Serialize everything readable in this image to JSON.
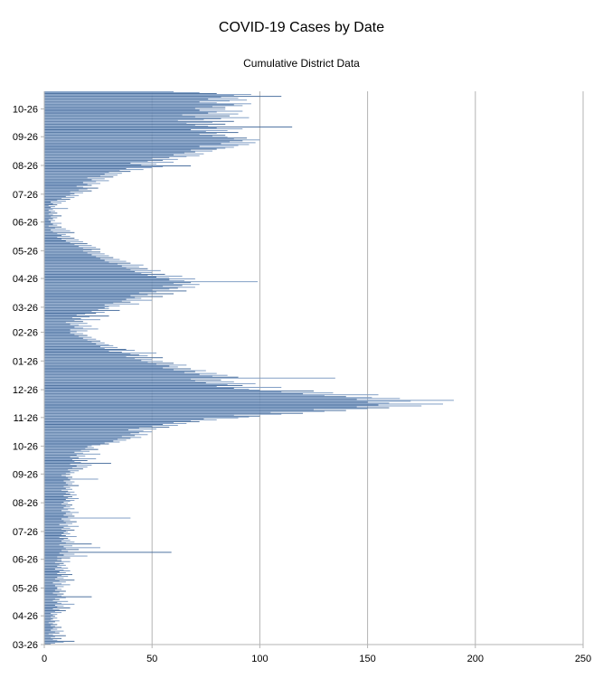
{
  "chart_data": {
    "type": "bar",
    "orientation": "horizontal",
    "title": "COVID-19 Cases by Date",
    "subtitle": "Cumulative District Data",
    "xlabel": "",
    "ylabel": "",
    "xlim": [
      0,
      250
    ],
    "x_ticks": [
      "0",
      "50",
      "100",
      "150",
      "200",
      "250"
    ],
    "y_tick_labels": [
      "03-26",
      "04-26",
      "05-26",
      "06-26",
      "07-26",
      "08-26",
      "09-26",
      "10-26",
      "11-26",
      "12-26",
      "01-26",
      "02-26",
      "03-26",
      "04-26",
      "05-26",
      "06-26",
      "07-26",
      "08-26",
      "09-26",
      "10-26"
    ],
    "grid": "vertical",
    "legend": "none",
    "bar_color": "#7f9dc4",
    "bar_color_dark": "#4a6f9e",
    "monthly_values": [
      {
        "label": "03-26",
        "values": [
          3,
          5,
          9,
          14,
          6,
          4,
          8,
          3,
          5,
          10,
          4,
          2,
          7,
          5,
          9,
          3,
          6,
          4,
          8,
          5,
          3,
          6,
          4,
          2,
          5,
          7,
          3,
          4,
          6,
          3,
          5
        ]
      },
      {
        "label": "04-26",
        "values": [
          4,
          6,
          3,
          8,
          5,
          10,
          7,
          4,
          12,
          6,
          9,
          5,
          14,
          8,
          6,
          11,
          4,
          7,
          5,
          10,
          22,
          8,
          6,
          9,
          4,
          7,
          10,
          5,
          8,
          6
        ]
      },
      {
        "label": "05-26",
        "values": [
          6,
          9,
          5,
          12,
          8,
          4,
          10,
          7,
          14,
          5,
          9,
          6,
          11,
          8,
          13,
          6,
          10,
          7,
          12,
          9,
          5,
          11,
          8,
          6,
          10,
          7,
          9,
          5,
          12,
          8,
          6
        ]
      },
      {
        "label": "06-26",
        "values": [
          8,
          12,
          6,
          20,
          9,
          14,
          7,
          59,
          11,
          8,
          16,
          10,
          26,
          9,
          13,
          7,
          22,
          10,
          14,
          8,
          12,
          9,
          11,
          7,
          15,
          10,
          8,
          12,
          9,
          11
        ]
      },
      {
        "label": "07-26",
        "values": [
          10,
          14,
          8,
          12,
          9,
          16,
          11,
          7,
          13,
          10,
          15,
          9,
          12,
          8,
          40,
          11,
          14,
          9,
          13,
          10,
          16,
          12,
          8,
          11,
          14,
          9,
          12,
          10,
          13,
          8,
          11
        ]
      },
      {
        "label": "08-26",
        "values": [
          9,
          12,
          14,
          10,
          16,
          11,
          13,
          9,
          15,
          12,
          10,
          14,
          11,
          8,
          13,
          10,
          12,
          9,
          16,
          11,
          13,
          10,
          14,
          9,
          12,
          25,
          11,
          13,
          10,
          8,
          12
        ]
      },
      {
        "label": "09-26",
        "values": [
          10,
          14,
          12,
          16,
          11,
          18,
          13,
          20,
          15,
          22,
          12,
          31,
          17,
          14,
          20,
          13,
          24,
          16,
          12,
          19,
          15,
          26,
          18,
          14,
          21,
          17,
          25,
          19,
          23,
          20
        ]
      },
      {
        "label": "10-26",
        "values": [
          22,
          26,
          30,
          28,
          35,
          32,
          38,
          34,
          40,
          45,
          36,
          42,
          48,
          40,
          44,
          50,
          46,
          39,
          52,
          44,
          58,
          50,
          62,
          55,
          66,
          60,
          72,
          68,
          80,
          74,
          90
        ]
      },
      {
        "label": "11-26",
        "values": [
          95,
          100,
          88,
          110,
          120,
          105,
          130,
          140,
          125,
          150,
          160,
          145,
          175,
          155,
          185,
          160,
          150,
          170,
          190,
          145,
          165,
          152,
          140,
          130,
          155,
          120,
          134,
          110,
          125,
          100
        ]
      },
      {
        "label": "12-26",
        "values": [
          95,
          88,
          110,
          80,
          92,
          85,
          98,
          75,
          88,
          70,
          82,
          68,
          135,
          90,
          78,
          85,
          72,
          80,
          65,
          70,
          75,
          60,
          68,
          55,
          62,
          58,
          66,
          52,
          60,
          48,
          55
        ]
      },
      {
        "label": "01-26",
        "values": [
          45,
          50,
          42,
          55,
          38,
          48,
          44,
          40,
          52,
          36,
          30,
          42,
          38,
          28,
          34,
          26,
          32,
          30,
          24,
          28,
          22,
          26,
          20,
          24,
          18,
          22,
          16,
          20,
          14,
          18,
          12
        ]
      },
      {
        "label": "02-26",
        "values": [
          15,
          20,
          12,
          25,
          18,
          14,
          22,
          16,
          12,
          20,
          10,
          18,
          14,
          26,
          17,
          13,
          21,
          30,
          15,
          19,
          24,
          28,
          22,
          35,
          25,
          30,
          28
        ]
      },
      {
        "label": "03-26",
        "values": [
          30,
          35,
          28,
          44,
          32,
          40,
          36,
          50,
          38,
          45,
          42,
          55,
          40,
          48,
          60,
          44,
          52,
          66,
          50,
          58,
          62,
          70,
          55,
          64,
          72,
          60,
          68,
          99,
          65,
          58,
          70
        ]
      },
      {
        "label": "04-26",
        "values": [
          58,
          52,
          64,
          48,
          56,
          45,
          50,
          42,
          54,
          40,
          48,
          38,
          44,
          36,
          46,
          34,
          40,
          30,
          38,
          28,
          35,
          26,
          32,
          24,
          30,
          22,
          28,
          20,
          26,
          18
        ]
      },
      {
        "label": "05-26",
        "values": [
          22,
          26,
          18,
          24,
          16,
          22,
          14,
          20,
          12,
          18,
          10,
          16,
          8,
          14,
          6,
          12,
          8,
          10,
          6,
          14,
          4,
          12,
          3,
          10,
          5,
          8,
          2,
          6,
          4,
          8,
          3
        ]
      },
      {
        "label": "06-26",
        "values": [
          3,
          5,
          2,
          4,
          6,
          3,
          8,
          4,
          2,
          6,
          3,
          5,
          2,
          4,
          11,
          3,
          5,
          2,
          6,
          4,
          8,
          3,
          10,
          6,
          12,
          8,
          14,
          10,
          16,
          12
        ]
      },
      {
        "label": "07-26",
        "values": [
          14,
          18,
          12,
          22,
          16,
          20,
          25,
          18,
          15,
          22,
          20,
          26,
          18,
          24,
          30,
          22,
          28,
          20,
          32,
          26,
          34,
          28,
          36,
          30,
          40,
          35,
          46,
          38,
          50,
          55,
          68
        ]
      },
      {
        "label": "08-26",
        "values": [
          45,
          52,
          40,
          60,
          48,
          55,
          62,
          50,
          58,
          66,
          72,
          60,
          74,
          65,
          70,
          78,
          68,
          80,
          84,
          88,
          72,
          90,
          95,
          82,
          98,
          86,
          92,
          100,
          88,
          94,
          85
        ]
      },
      {
        "label": "09-26",
        "values": [
          78,
          84,
          72,
          80,
          90,
          75,
          85,
          68,
          92,
          80,
          115,
          76,
          70,
          84,
          66,
          78,
          88,
          62,
          74,
          82,
          95,
          70,
          86,
          64,
          90,
          76,
          80,
          92,
          72,
          84
        ]
      },
      {
        "label": "10-26",
        "values": [
          70,
          84,
          78,
          92,
          88,
          96,
          80,
          72,
          86,
          94,
          76,
          90,
          82,
          110,
          88,
          96,
          80,
          72,
          60
        ]
      }
    ]
  }
}
